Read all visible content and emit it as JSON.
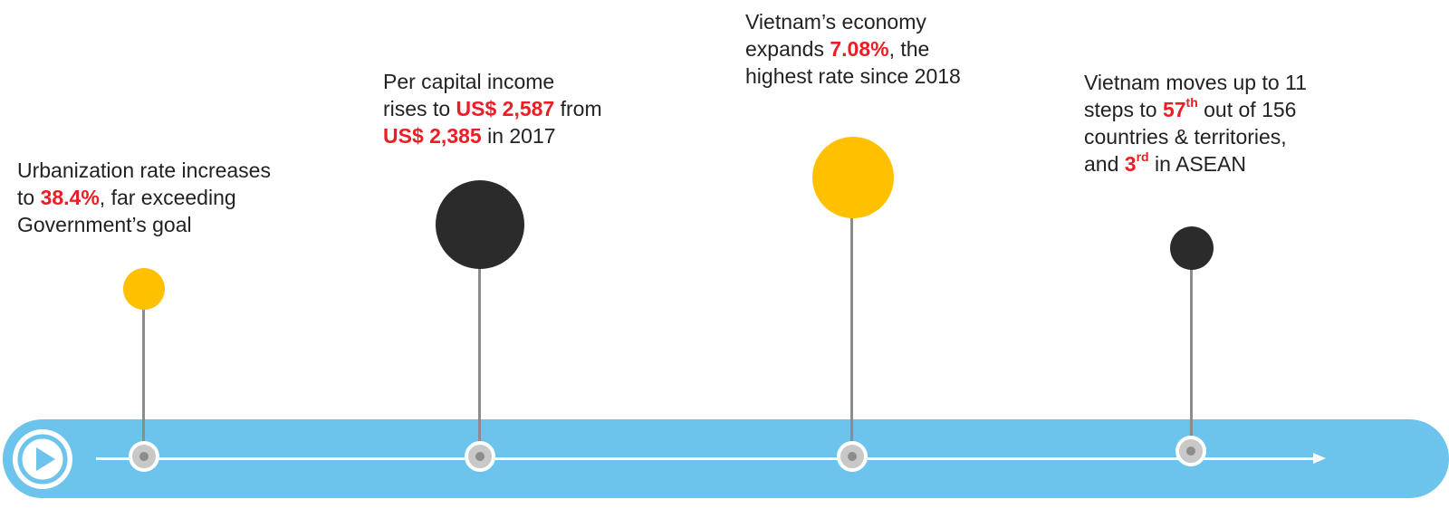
{
  "colors": {
    "band": "#6cc3eb",
    "highlight": "#ee1c24",
    "yellow": "#ffc000",
    "dark": "#2b2b2b",
    "stem": "#8c8c8c",
    "node": "#c8c8c8"
  },
  "milestones": [
    {
      "bubble_color": "yellow",
      "lines": [
        [
          {
            "t": "Urbanization rate increases"
          }
        ],
        [
          {
            "t": "to "
          },
          {
            "t": "38.4%",
            "hl": true
          },
          {
            "t": ", far exceeding"
          }
        ],
        [
          {
            "t": "Government’s goal"
          }
        ]
      ]
    },
    {
      "bubble_color": "dark",
      "lines": [
        [
          {
            "t": "Per capital income"
          }
        ],
        [
          {
            "t": "rises to "
          },
          {
            "t": "US$ 2,587",
            "hl": true
          },
          {
            "t": " from"
          }
        ],
        [
          {
            "t": "US$ 2,385",
            "hl": true
          },
          {
            "t": " in 2017"
          }
        ]
      ]
    },
    {
      "bubble_color": "yellow",
      "lines": [
        [
          {
            "t": "Vietnam’s economy"
          }
        ],
        [
          {
            "t": "expands "
          },
          {
            "t": "7.08%",
            "hl": true
          },
          {
            "t": ", the"
          }
        ],
        [
          {
            "t": "highest rate since 2018"
          }
        ]
      ]
    },
    {
      "bubble_color": "dark",
      "lines": [
        [
          {
            "t": "Vietnam moves up to 11"
          }
        ],
        [
          {
            "t": "steps to "
          },
          {
            "t": "57",
            "hl": true,
            "sup": "th"
          },
          {
            "t": " out of 156"
          }
        ],
        [
          {
            "t": "countries & territories,"
          }
        ],
        [
          {
            "t": "and "
          },
          {
            "t": "3",
            "hl": true,
            "sup": "rd"
          },
          {
            "t": " in ASEAN"
          }
        ]
      ]
    }
  ]
}
